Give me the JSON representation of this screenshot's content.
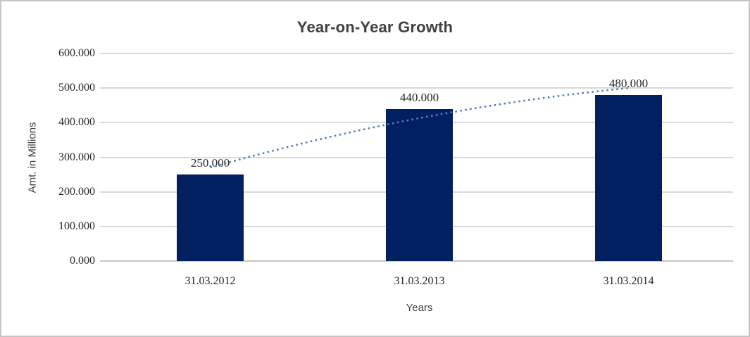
{
  "window": {
    "background": "#ffffff",
    "frame_border_color": "#c5c5c5"
  },
  "chart_data": {
    "type": "bar",
    "title": "Year-on-Year Growth",
    "xlabel": "Years",
    "ylabel": "Amt. in Millions",
    "categories": [
      "31.03.2012",
      "31.03.2013",
      "31.03.2014"
    ],
    "values": [
      250,
      440,
      480
    ],
    "value_labels": [
      "250.000",
      "440.000",
      "480.000"
    ],
    "ylim": [
      0,
      600
    ],
    "ytick_step": 100,
    "ytick_labels": [
      "0.000",
      "100.000",
      "200.000",
      "300.000",
      "400.000",
      "500.000",
      "600.000"
    ],
    "grid": true,
    "legend": "none",
    "bar_color": "#002060",
    "gridline_color": "#d9d9d9",
    "text_color": "#262626",
    "title_color": "#404040",
    "trendline": {
      "type": "logarithmic",
      "style": "dotted",
      "color": "#4f81bd",
      "values_at_categories": [
        270,
        413,
        500
      ]
    }
  }
}
